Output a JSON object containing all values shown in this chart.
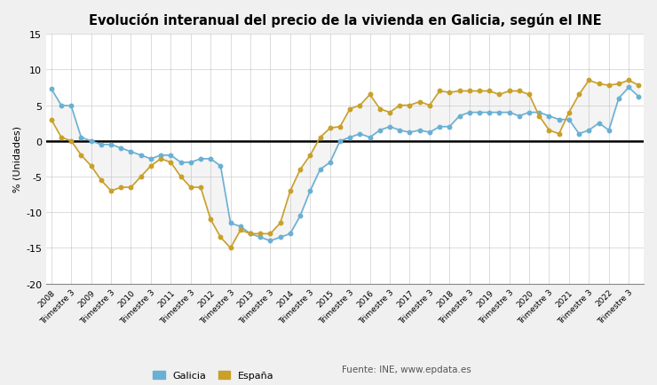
{
  "title": "Evolución interanual del precio de la vivienda en Galicia, según el INE",
  "ylabel": "% (Unidades)",
  "source_text": "Fuente: INE, www.epdata.es",
  "legend_galicia": "Galicia",
  "legend_espana": "España",
  "galicia_color": "#6ab0d4",
  "espana_color": "#c9a028",
  "fig_bg_color": "#f0f0f0",
  "plot_bg_color": "#ffffff",
  "ylim": [
    -20,
    15
  ],
  "yticks": [
    -20,
    -15,
    -10,
    -5,
    0,
    5,
    10,
    15
  ],
  "galicia_values": [
    7.3,
    5.0,
    4.9,
    0.5,
    0.0,
    -0.5,
    -0.5,
    -1.0,
    -1.5,
    -2.0,
    -2.5,
    -2.0,
    -2.0,
    -3.0,
    -3.0,
    -2.5,
    -2.5,
    -3.5,
    -11.5,
    -12.0,
    -13.0,
    -13.5,
    -14.0,
    -13.5,
    -13.0,
    -10.5,
    -7.0,
    -4.0,
    -3.0,
    0.0,
    0.5,
    1.0,
    0.5,
    1.5,
    2.0,
    1.5,
    1.2,
    1.5,
    1.2,
    2.0,
    2.0,
    3.5,
    4.0,
    4.0,
    4.0,
    4.0,
    4.0,
    3.5,
    4.0,
    4.0,
    3.5,
    3.0,
    3.0,
    1.0,
    1.5,
    2.5,
    1.5,
    6.0,
    7.5,
    6.2
  ],
  "espana_values": [
    3.0,
    0.5,
    0.0,
    -2.0,
    -3.5,
    -5.5,
    -7.0,
    -6.5,
    -6.5,
    -5.0,
    -3.5,
    -2.5,
    -3.0,
    -5.0,
    -6.5,
    -6.5,
    -11.0,
    -13.5,
    -15.0,
    -12.5,
    -13.0,
    -13.0,
    -13.0,
    -11.5,
    -7.0,
    -4.0,
    -2.0,
    0.5,
    1.8,
    2.0,
    4.5,
    5.0,
    6.5,
    4.5,
    4.0,
    5.0,
    5.0,
    5.5,
    5.0,
    7.0,
    6.8,
    7.0,
    7.0,
    7.0,
    7.0,
    6.5,
    7.0,
    7.0,
    6.5,
    3.5,
    1.5,
    1.0,
    4.0,
    6.5,
    8.5,
    8.0,
    7.8,
    8.0,
    8.5,
    7.8
  ],
  "years": [
    2008,
    2009,
    2010,
    2011,
    2012,
    2013,
    2014,
    2015,
    2016,
    2017,
    2018,
    2019,
    2020,
    2021,
    2022
  ]
}
